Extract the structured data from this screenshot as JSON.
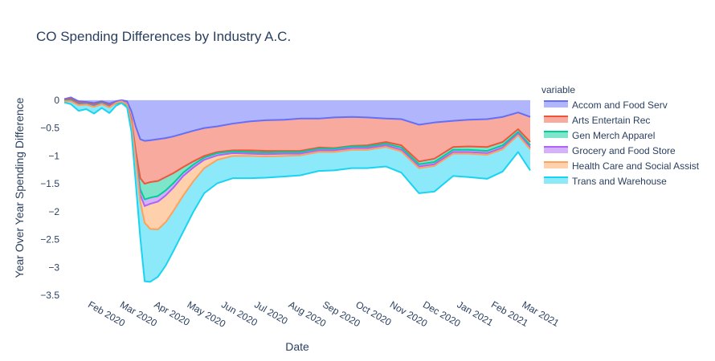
{
  "chart_data": {
    "type": "area",
    "title": "CO Spending Differences by Industry A.C.",
    "xlabel": "Date",
    "ylabel": "Year Over Year Spending Difference",
    "x_range": [
      "2020-01-14",
      "2021-03-12"
    ],
    "ylim": [
      -3.5,
      0.2
    ],
    "y_ticks": [
      0,
      -0.5,
      -1,
      -1.5,
      -2,
      -2.5,
      -3,
      -3.5
    ],
    "y_tick_labels": [
      "0",
      "−0.5",
      "−1",
      "−1.5",
      "−2",
      "−2.5",
      "−3",
      "−3.5"
    ],
    "x_ticks": [
      "2020-02-01",
      "2020-03-01",
      "2020-04-01",
      "2020-05-01",
      "2020-06-01",
      "2020-07-01",
      "2020-08-01",
      "2020-09-01",
      "2020-10-01",
      "2020-11-01",
      "2020-12-01",
      "2021-01-01",
      "2021-02-01",
      "2021-03-01"
    ],
    "x_tick_labels": [
      "Feb 2020",
      "Mar 2020",
      "Apr 2020",
      "May 2020",
      "Jun 2020",
      "Jul 2020",
      "Aug 2020",
      "Sep 2020",
      "Oct 2020",
      "Nov 2020",
      "Dec 2020",
      "Jan 2021",
      "Feb 2021",
      "Mar 2021"
    ],
    "stacking": "cumulative, each series stacked below the previous",
    "legend": {
      "title": "variable",
      "position": "right"
    },
    "x": [
      "2020-01-14",
      "2020-01-20",
      "2020-01-27",
      "2020-02-03",
      "2020-02-10",
      "2020-02-17",
      "2020-02-24",
      "2020-03-01",
      "2020-03-06",
      "2020-03-11",
      "2020-03-15",
      "2020-03-19",
      "2020-03-23",
      "2020-03-27",
      "2020-04-01",
      "2020-04-08",
      "2020-04-15",
      "2020-04-22",
      "2020-05-01",
      "2020-05-10",
      "2020-05-20",
      "2020-06-01",
      "2020-06-15",
      "2020-07-01",
      "2020-07-15",
      "2020-08-01",
      "2020-08-15",
      "2020-09-01",
      "2020-09-15",
      "2020-10-01",
      "2020-10-15",
      "2020-11-01",
      "2020-11-15",
      "2020-12-01",
      "2020-12-15",
      "2021-01-01",
      "2021-01-15",
      "2021-02-01",
      "2021-02-15",
      "2021-03-01",
      "2021-03-12"
    ],
    "series": [
      {
        "name": "Accom and Food Serv",
        "color": "#636efa",
        "values": [
          0.02,
          0.05,
          -0.02,
          -0.03,
          -0.05,
          -0.02,
          -0.06,
          -0.02,
          0.0,
          -0.02,
          -0.2,
          -0.48,
          -0.7,
          -0.73,
          -0.72,
          -0.7,
          -0.68,
          -0.65,
          -0.6,
          -0.55,
          -0.5,
          -0.47,
          -0.42,
          -0.38,
          -0.36,
          -0.35,
          -0.33,
          -0.33,
          -0.31,
          -0.3,
          -0.31,
          -0.33,
          -0.34,
          -0.44,
          -0.4,
          -0.37,
          -0.35,
          -0.34,
          -0.3,
          -0.22,
          -0.3
        ]
      },
      {
        "name": "Arts Entertain Rec",
        "color": "#ef553b",
        "values": [
          -0.02,
          -0.03,
          -0.03,
          -0.02,
          -0.03,
          -0.02,
          -0.03,
          -0.03,
          -0.03,
          -0.05,
          -0.15,
          -0.45,
          -0.7,
          -0.77,
          -0.75,
          -0.75,
          -0.7,
          -0.66,
          -0.6,
          -0.55,
          -0.5,
          -0.46,
          -0.48,
          -0.52,
          -0.55,
          -0.56,
          -0.58,
          -0.52,
          -0.55,
          -0.52,
          -0.5,
          -0.42,
          -0.47,
          -0.66,
          -0.65,
          -0.47,
          -0.48,
          -0.5,
          -0.45,
          -0.3,
          -0.45
        ]
      },
      {
        "name": "Gen Merch Apparel",
        "color": "#00cc96",
        "values": [
          -0.01,
          -0.02,
          -0.02,
          -0.01,
          -0.02,
          -0.01,
          -0.02,
          -0.01,
          -0.01,
          -0.02,
          -0.05,
          -0.1,
          -0.2,
          -0.28,
          -0.28,
          -0.27,
          -0.24,
          -0.18,
          -0.1,
          -0.06,
          -0.03,
          -0.02,
          -0.02,
          -0.03,
          -0.03,
          -0.02,
          -0.02,
          -0.02,
          -0.01,
          -0.01,
          -0.02,
          -0.03,
          -0.04,
          -0.05,
          -0.06,
          -0.05,
          -0.06,
          -0.07,
          -0.06,
          -0.05,
          -0.06
        ]
      },
      {
        "name": "Grocery and Food Store",
        "color": "#ab63fa",
        "values": [
          -0.01,
          -0.01,
          -0.01,
          -0.01,
          -0.01,
          -0.01,
          -0.01,
          0.02,
          0.03,
          0.02,
          0.0,
          -0.03,
          -0.1,
          -0.12,
          -0.11,
          -0.1,
          -0.09,
          -0.08,
          -0.06,
          -0.05,
          -0.04,
          -0.04,
          -0.03,
          -0.03,
          -0.03,
          -0.03,
          -0.03,
          -0.03,
          -0.03,
          -0.03,
          -0.03,
          -0.03,
          -0.04,
          -0.04,
          -0.04,
          -0.04,
          -0.04,
          -0.04,
          -0.04,
          -0.03,
          -0.04
        ]
      },
      {
        "name": "Health Care and Social Assist",
        "color": "#ffa15a",
        "values": [
          0.0,
          -0.01,
          -0.01,
          -0.01,
          -0.01,
          -0.01,
          -0.01,
          -0.01,
          -0.01,
          -0.01,
          -0.02,
          -0.05,
          -0.12,
          -0.3,
          -0.45,
          -0.5,
          -0.48,
          -0.42,
          -0.35,
          -0.25,
          -0.15,
          -0.08,
          -0.05,
          -0.04,
          -0.04,
          -0.04,
          -0.03,
          -0.03,
          -0.03,
          -0.03,
          -0.03,
          -0.03,
          -0.03,
          -0.03,
          -0.03,
          -0.03,
          -0.03,
          -0.03,
          -0.03,
          -0.03,
          -0.03
        ]
      },
      {
        "name": "Trans and Warehouse",
        "color": "#19d3f3",
        "values": [
          -0.02,
          -0.05,
          -0.1,
          -0.08,
          -0.12,
          -0.07,
          -0.1,
          -0.05,
          -0.03,
          -0.05,
          -0.15,
          -0.4,
          -0.65,
          -1.05,
          -0.95,
          -0.85,
          -0.78,
          -0.72,
          -0.65,
          -0.55,
          -0.45,
          -0.42,
          -0.4,
          -0.4,
          -0.38,
          -0.37,
          -0.36,
          -0.34,
          -0.33,
          -0.33,
          -0.33,
          -0.35,
          -0.38,
          -0.45,
          -0.46,
          -0.4,
          -0.42,
          -0.43,
          -0.4,
          -0.3,
          -0.38
        ]
      }
    ]
  }
}
